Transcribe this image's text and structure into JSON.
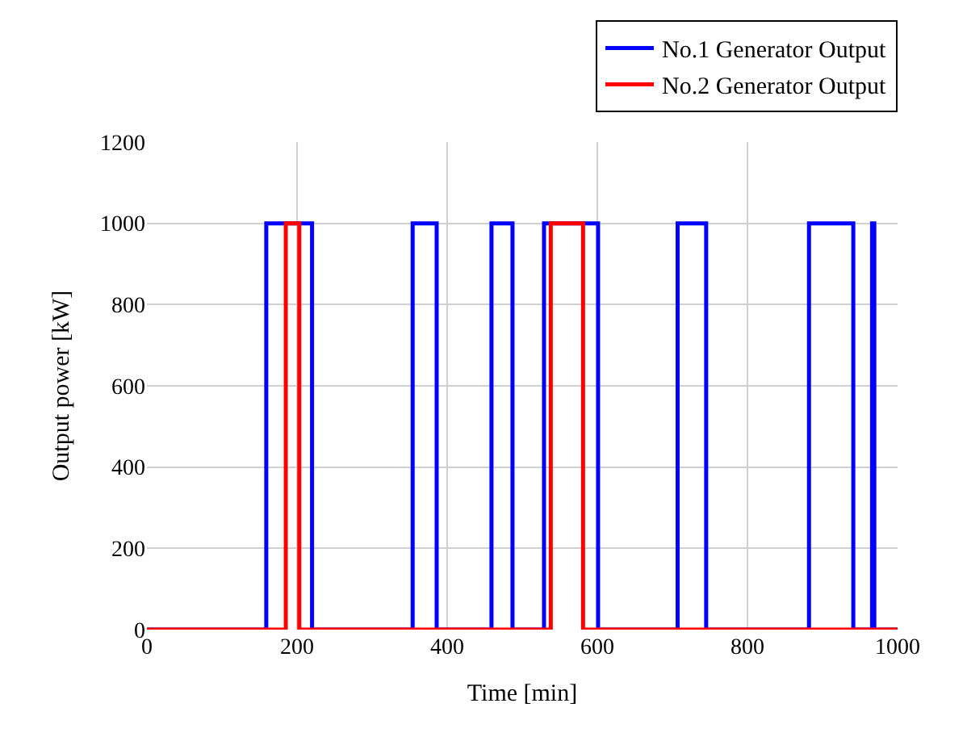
{
  "chart_data": {
    "type": "step",
    "xlabel": "Time [min]",
    "ylabel": "Output power [kW]",
    "xlim": [
      0,
      1000
    ],
    "xticks": [
      0,
      200,
      400,
      600,
      800,
      1000
    ],
    "ylim": [
      0,
      1200
    ],
    "yticks": [
      0,
      200,
      400,
      600,
      800,
      1000,
      1200
    ],
    "grid": true,
    "legend": "top right",
    "marker": "none",
    "line_style": "solid",
    "series": [
      {
        "name": "No.1 Generator Output",
        "color": "#0000ff",
        "x": [
          0,
          159,
          220,
          354,
          386,
          459,
          487,
          529,
          601,
          707,
          745,
          882,
          941,
          966,
          969,
          1000
        ],
        "values": [
          0,
          1000,
          0,
          1000,
          0,
          1000,
          0,
          1000,
          0,
          1000,
          0,
          1000,
          0,
          1000,
          0,
          0
        ]
      },
      {
        "name": "No.2 Generator Output",
        "color": "#ff0000",
        "x": [
          0,
          185,
          203,
          538,
          581,
          1000
        ],
        "values": [
          0,
          1000,
          0,
          1000,
          0,
          0
        ]
      }
    ]
  }
}
